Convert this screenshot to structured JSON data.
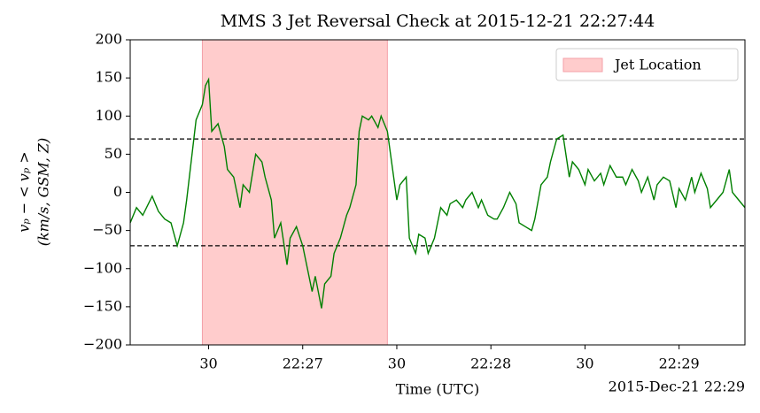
{
  "chart_data": {
    "type": "line",
    "title": "MMS 3 Jet Reversal Check at 2015-12-21 22:27:44",
    "xlabel": "Time (UTC)",
    "x_offset_label": "2015-Dec-21 22:29",
    "ylabel": [
      "vₚ − < vₚ >",
      "(km/s, GSM, Z)"
    ],
    "xlim": [
      "22:26:05",
      "22:29:21"
    ],
    "xticks": [
      {
        "value": "22:26:30",
        "label": "30"
      },
      {
        "value": "22:27:00",
        "label": "22:27"
      },
      {
        "value": "22:27:30",
        "label": "30"
      },
      {
        "value": "22:28:00",
        "label": "22:28"
      },
      {
        "value": "22:28:30",
        "label": "30"
      },
      {
        "value": "22:29:00",
        "label": "22:29"
      }
    ],
    "ylim": [
      -200,
      200
    ],
    "yticks": [
      {
        "value": -200,
        "label": "−200"
      },
      {
        "value": -150,
        "label": "−150"
      },
      {
        "value": -100,
        "label": "−100"
      },
      {
        "value": -50,
        "label": "−50"
      },
      0,
      50,
      100,
      150,
      200
    ],
    "grid": false,
    "legend": "upper right",
    "color": "#008000",
    "hlines": [
      70,
      -70
    ],
    "span": {
      "name": "Jet Location",
      "x": [
        "22:26:28",
        "22:27:27"
      ],
      "color": "#ffcccc",
      "edge": "#f4a0a8"
    },
    "x": [
      "22:26:05",
      "22:26:07",
      "22:26:09",
      "22:26:12",
      "22:26:14",
      "22:26:16",
      "22:26:18",
      "22:26:20",
      "22:26:22",
      "22:26:23",
      "22:26:25",
      "22:26:26",
      "22:26:28",
      "22:26:29",
      "22:26:30",
      "22:26:31",
      "22:26:33",
      "22:26:35",
      "22:26:36",
      "22:26:38",
      "22:26:40",
      "22:26:41",
      "22:26:43",
      "22:26:45",
      "22:26:47",
      "22:26:48",
      "22:26:50",
      "22:26:51",
      "22:26:53",
      "22:26:55",
      "22:26:56",
      "22:26:58",
      "22:27:00",
      "22:27:01",
      "22:27:03",
      "22:27:04",
      "22:27:06",
      "22:27:07",
      "22:27:09",
      "22:27:10",
      "22:27:12",
      "22:27:14",
      "22:27:15",
      "22:27:17",
      "22:27:18",
      "22:27:19",
      "22:27:21",
      "22:27:22",
      "22:27:24",
      "22:27:25",
      "22:27:27",
      "22:27:28",
      "22:27:30",
      "22:27:31",
      "22:27:33",
      "22:27:34",
      "22:27:36",
      "22:27:37",
      "22:27:39",
      "22:27:40",
      "22:27:42",
      "22:27:44",
      "22:27:46",
      "22:27:47",
      "22:27:49",
      "22:27:51",
      "22:27:52",
      "22:27:54",
      "22:27:56",
      "22:27:57",
      "22:27:59",
      "22:28:01",
      "22:28:02",
      "22:28:04",
      "22:28:06",
      "22:28:08",
      "22:28:09",
      "22:28:11",
      "22:28:13",
      "22:28:14",
      "22:28:16",
      "22:28:18",
      "22:28:19",
      "22:28:21",
      "22:28:23",
      "22:28:25",
      "22:28:26",
      "22:28:28",
      "22:28:30",
      "22:28:31",
      "22:28:33",
      "22:28:35",
      "22:28:36",
      "22:28:38",
      "22:28:40",
      "22:28:42",
      "22:28:43",
      "22:28:45",
      "22:28:47",
      "22:28:48",
      "22:28:50",
      "22:28:52",
      "22:28:53",
      "22:28:55",
      "22:28:57",
      "22:28:59",
      "22:29:00",
      "22:29:02",
      "22:29:04",
      "22:29:05",
      "22:29:07",
      "22:29:09",
      "22:29:10",
      "22:29:12",
      "22:29:14",
      "22:29:16",
      "22:29:17",
      "22:29:19",
      "22:29:21"
    ],
    "values": [
      -40,
      -20,
      -30,
      -5,
      -25,
      -35,
      -40,
      -70,
      -40,
      -10,
      60,
      95,
      115,
      140,
      148,
      80,
      90,
      60,
      30,
      20,
      -20,
      10,
      0,
      50,
      40,
      20,
      -10,
      -60,
      -40,
      -95,
      -60,
      -45,
      -70,
      -90,
      -130,
      -110,
      -152,
      -120,
      -110,
      -80,
      -60,
      -30,
      -20,
      10,
      80,
      100,
      95,
      100,
      85,
      100,
      80,
      50,
      -10,
      10,
      20,
      -60,
      -80,
      -55,
      -60,
      -80,
      -60,
      -20,
      -30,
      -15,
      -10,
      -20,
      -10,
      0,
      -20,
      -10,
      -30,
      -35,
      -35,
      -20,
      0,
      -15,
      -40,
      -45,
      -50,
      -35,
      10,
      20,
      40,
      70,
      75,
      20,
      40,
      30,
      10,
      30,
      15,
      25,
      10,
      35,
      20,
      20,
      10,
      30,
      15,
      0,
      20,
      -10,
      10,
      20,
      15,
      -20,
      5,
      -10,
      20,
      0,
      25,
      5,
      -20,
      -10,
      0,
      30,
      0,
      -10,
      -20
    ]
  }
}
